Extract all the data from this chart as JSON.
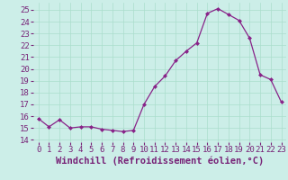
{
  "x": [
    0,
    1,
    2,
    3,
    4,
    5,
    6,
    7,
    8,
    9,
    10,
    11,
    12,
    13,
    14,
    15,
    16,
    17,
    18,
    19,
    20,
    21,
    22,
    23
  ],
  "y": [
    15.8,
    15.1,
    15.7,
    15.0,
    15.1,
    15.1,
    14.9,
    14.8,
    14.7,
    14.8,
    17.0,
    18.5,
    19.4,
    20.7,
    21.5,
    22.2,
    24.7,
    25.1,
    24.6,
    24.1,
    22.6,
    19.5,
    19.1,
    17.2
  ],
  "line_color": "#882288",
  "bg_color": "#cceee8",
  "grid_color": "#aaddcc",
  "xlabel": "Windchill (Refroidissement éolien,°C)",
  "xlim": [
    -0.5,
    23.5
  ],
  "ylim": [
    13.8,
    25.6
  ],
  "yticks": [
    14,
    15,
    16,
    17,
    18,
    19,
    20,
    21,
    22,
    23,
    24,
    25
  ],
  "xtick_labels": [
    "0",
    "1",
    "2",
    "3",
    "4",
    "5",
    "6",
    "7",
    "8",
    "9",
    "10",
    "11",
    "12",
    "13",
    "14",
    "15",
    "16",
    "17",
    "18",
    "19",
    "20",
    "21",
    "22",
    "23"
  ],
  "xlabel_fontsize": 7.5,
  "tick_fontsize": 6.5,
  "tick_color": "#772277",
  "line_width": 0.9,
  "marker_size": 2.5
}
